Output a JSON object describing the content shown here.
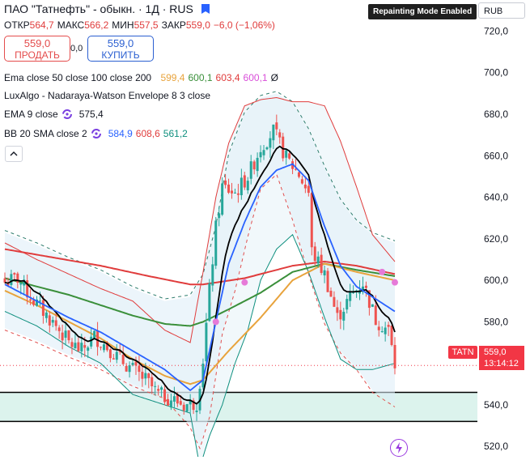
{
  "header": {
    "title": "ПАО \"Татнефть\" - обыкн. · 1Д · RUS",
    "ohlc": [
      {
        "label": "ОТКР",
        "value": "564,7"
      },
      {
        "label": "МАКС",
        "value": "566,2"
      },
      {
        "label": "МИН",
        "value": "557,5"
      },
      {
        "label": "ЗАКР",
        "value": "559,0"
      },
      {
        "label": "",
        "value": "−6,0 (−1,06%)"
      }
    ],
    "currency": "RUB",
    "repainting_badge": "Repainting Mode Enabled"
  },
  "trade": {
    "sell_price": "559,0",
    "sell_label": "ПРОДАТЬ",
    "spread": "0,0",
    "buy_price": "559,0",
    "buy_label": "КУПИТЬ"
  },
  "indicators": [
    {
      "name": "Ema close 50 close 100 close 200",
      "values": [
        {
          "text": "599,4",
          "color": "#e8a33c"
        },
        {
          "text": "600,1",
          "color": "#3a8f3a"
        },
        {
          "text": "603,4",
          "color": "#e03c3c"
        },
        {
          "text": "600,1",
          "color": "#d94fd9"
        },
        {
          "text": "Ø",
          "color": "#131722"
        }
      ]
    },
    {
      "name": "LuxAlgo - Nadaraya-Watson Envelope 8 3 close",
      "values": []
    },
    {
      "name": "EMA 9 close",
      "values": [
        {
          "text": "575,4",
          "color": "#131722"
        }
      ],
      "gear": true
    },
    {
      "name": "BB 20 SMA close 2",
      "values": [
        {
          "text": "584,9",
          "color": "#2962ff"
        },
        {
          "text": "608,6",
          "color": "#e03c3c"
        },
        {
          "text": "561,2",
          "color": "#0e8f7e"
        }
      ],
      "gear": true
    }
  ],
  "price_labels": {
    "symbol": "TATN",
    "last_price": "559,0",
    "countdown": "13:14:12"
  },
  "colors": {
    "up": "#26a69a",
    "down": "#ef5350",
    "ema50": "#e8a33c",
    "ema100": "#3a8f3a",
    "ema200": "#e03c3c",
    "ema9": "#000000",
    "bb_basis": "#2962ff",
    "bb_upper": "#e03c3c",
    "bb_lower": "#0e8f7e",
    "nw_band": "#2e7d6e",
    "zone_fill": "#cdeee6"
  },
  "chart_data": {
    "type": "candlestick",
    "ylim": [
      515,
      735
    ],
    "yticks": [
      "720,0",
      "700,0",
      "680,0",
      "660,0",
      "640,0",
      "620,0",
      "600,0",
      "580,0",
      "560,0",
      "540,0",
      "520,0"
    ],
    "ytick_values": [
      720,
      700,
      680,
      660,
      640,
      620,
      600,
      580,
      560,
      540,
      520
    ],
    "last_price": 559,
    "support_zone": [
      532,
      546
    ],
    "key_points": [
      {
        "i": 0,
        "p": 599
      },
      {
        "i": 4,
        "p": 601
      },
      {
        "i": 8,
        "p": 592
      },
      {
        "i": 12,
        "p": 585
      },
      {
        "i": 16,
        "p": 578
      },
      {
        "i": 20,
        "p": 570
      },
      {
        "i": 24,
        "p": 566
      },
      {
        "i": 28,
        "p": 573
      },
      {
        "i": 32,
        "p": 568
      },
      {
        "i": 36,
        "p": 562
      },
      {
        "i": 40,
        "p": 557
      },
      {
        "i": 44,
        "p": 552
      },
      {
        "i": 48,
        "p": 545
      },
      {
        "i": 52,
        "p": 543
      },
      {
        "i": 56,
        "p": 540
      },
      {
        "i": 60,
        "p": 541
      },
      {
        "i": 62,
        "p": 562
      },
      {
        "i": 64,
        "p": 595
      },
      {
        "i": 66,
        "p": 625
      },
      {
        "i": 68,
        "p": 645
      },
      {
        "i": 72,
        "p": 642
      },
      {
        "i": 76,
        "p": 650
      },
      {
        "i": 80,
        "p": 664
      },
      {
        "i": 84,
        "p": 672
      },
      {
        "i": 88,
        "p": 659
      },
      {
        "i": 92,
        "p": 651
      },
      {
        "i": 95,
        "p": 642
      },
      {
        "i": 96,
        "p": 614
      },
      {
        "i": 100,
        "p": 603
      },
      {
        "i": 104,
        "p": 582
      },
      {
        "i": 108,
        "p": 592
      },
      {
        "i": 112,
        "p": 599
      },
      {
        "i": 116,
        "p": 581
      },
      {
        "i": 120,
        "p": 576
      },
      {
        "i": 122,
        "p": 559
      }
    ],
    "ema50": [
      [
        0,
        595
      ],
      [
        10,
        588
      ],
      [
        20,
        580
      ],
      [
        30,
        572
      ],
      [
        40,
        562
      ],
      [
        50,
        554
      ],
      [
        58,
        550
      ],
      [
        62,
        552
      ],
      [
        70,
        566
      ],
      [
        80,
        582
      ],
      [
        90,
        600
      ],
      [
        100,
        608
      ],
      [
        110,
        604
      ],
      [
        122,
        600
      ]
    ],
    "ema100": [
      [
        0,
        601
      ],
      [
        10,
        597
      ],
      [
        20,
        593
      ],
      [
        30,
        588
      ],
      [
        40,
        583
      ],
      [
        50,
        579
      ],
      [
        58,
        578
      ],
      [
        62,
        580
      ],
      [
        70,
        586
      ],
      [
        80,
        594
      ],
      [
        90,
        604
      ],
      [
        100,
        608
      ],
      [
        110,
        605
      ],
      [
        122,
        602
      ]
    ],
    "ema200": [
      [
        0,
        615
      ],
      [
        15,
        611
      ],
      [
        30,
        607
      ],
      [
        45,
        602
      ],
      [
        58,
        598
      ],
      [
        62,
        598
      ],
      [
        75,
        601
      ],
      [
        90,
        607
      ],
      [
        100,
        609
      ],
      [
        110,
        607
      ],
      [
        122,
        603
      ]
    ],
    "nw_upper": [
      [
        0,
        623
      ],
      [
        10,
        617
      ],
      [
        20,
        610
      ],
      [
        30,
        604
      ],
      [
        40,
        596
      ],
      [
        50,
        590
      ],
      [
        58,
        592
      ],
      [
        62,
        602
      ],
      [
        66,
        625
      ],
      [
        70,
        660
      ],
      [
        75,
        680
      ],
      [
        80,
        688
      ],
      [
        85,
        690
      ],
      [
        90,
        685
      ],
      [
        95,
        672
      ],
      [
        100,
        654
      ],
      [
        105,
        638
      ],
      [
        110,
        628
      ],
      [
        115,
        622
      ],
      [
        122,
        618
      ]
    ],
    "nw_lower": [
      [
        0,
        577
      ],
      [
        10,
        571
      ],
      [
        20,
        564
      ],
      [
        30,
        558
      ],
      [
        40,
        550
      ],
      [
        50,
        544
      ],
      [
        58,
        530
      ],
      [
        61,
        520
      ],
      [
        64,
        535
      ],
      [
        68,
        575
      ],
      [
        72,
        596
      ],
      [
        76,
        622
      ],
      [
        80,
        645
      ],
      [
        85,
        652
      ],
      [
        90,
        630
      ],
      [
        95,
        604
      ],
      [
        100,
        580
      ],
      [
        105,
        566
      ],
      [
        110,
        558
      ],
      [
        115,
        547
      ],
      [
        122,
        540
      ]
    ],
    "nw_mid": [
      [
        0,
        600
      ],
      [
        10,
        594
      ],
      [
        20,
        587
      ],
      [
        30,
        581
      ],
      [
        40,
        573
      ],
      [
        50,
        567
      ],
      [
        58,
        555
      ],
      [
        62,
        560
      ],
      [
        66,
        592
      ],
      [
        70,
        617
      ],
      [
        75,
        640
      ],
      [
        80,
        665
      ],
      [
        85,
        672
      ],
      [
        90,
        658
      ],
      [
        95,
        638
      ],
      [
        100,
        617
      ],
      [
        105,
        602
      ],
      [
        110,
        593
      ],
      [
        115,
        585
      ],
      [
        122,
        579
      ]
    ],
    "bb_basis": [
      [
        0,
        598
      ],
      [
        10,
        590
      ],
      [
        20,
        582
      ],
      [
        30,
        575
      ],
      [
        40,
        566
      ],
      [
        50,
        557
      ],
      [
        58,
        547
      ],
      [
        62,
        552
      ],
      [
        66,
        580
      ],
      [
        70,
        608
      ],
      [
        75,
        628
      ],
      [
        80,
        645
      ],
      [
        85,
        653
      ],
      [
        90,
        656
      ],
      [
        95,
        648
      ],
      [
        100,
        626
      ],
      [
        105,
        607
      ],
      [
        110,
        597
      ],
      [
        115,
        592
      ],
      [
        122,
        585
      ]
    ],
    "bb_upper": [
      [
        0,
        618
      ],
      [
        10,
        610
      ],
      [
        20,
        603
      ],
      [
        30,
        596
      ],
      [
        40,
        590
      ],
      [
        50,
        576
      ],
      [
        58,
        570
      ],
      [
        62,
        604
      ],
      [
        66,
        640
      ],
      [
        70,
        666
      ],
      [
        75,
        684
      ],
      [
        80,
        687
      ],
      [
        85,
        688
      ],
      [
        90,
        686
      ],
      [
        95,
        686
      ],
      [
        100,
        684
      ],
      [
        105,
        667
      ],
      [
        110,
        645
      ],
      [
        115,
        622
      ],
      [
        122,
        609
      ]
    ],
    "bb_lower": [
      [
        0,
        585
      ],
      [
        10,
        578
      ],
      [
        20,
        568
      ],
      [
        30,
        560
      ],
      [
        40,
        545
      ],
      [
        50,
        540
      ],
      [
        58,
        536
      ],
      [
        61,
        510
      ],
      [
        64,
        525
      ],
      [
        68,
        540
      ],
      [
        72,
        560
      ],
      [
        76,
        576
      ],
      [
        80,
        600
      ],
      [
        85,
        615
      ],
      [
        90,
        622
      ],
      [
        95,
        604
      ],
      [
        100,
        582
      ],
      [
        105,
        562
      ],
      [
        110,
        557
      ],
      [
        115,
        557
      ],
      [
        122,
        560
      ]
    ],
    "markers": [
      [
        66,
        580
      ],
      [
        75,
        599
      ],
      [
        118,
        604
      ],
      [
        122,
        599
      ]
    ]
  }
}
